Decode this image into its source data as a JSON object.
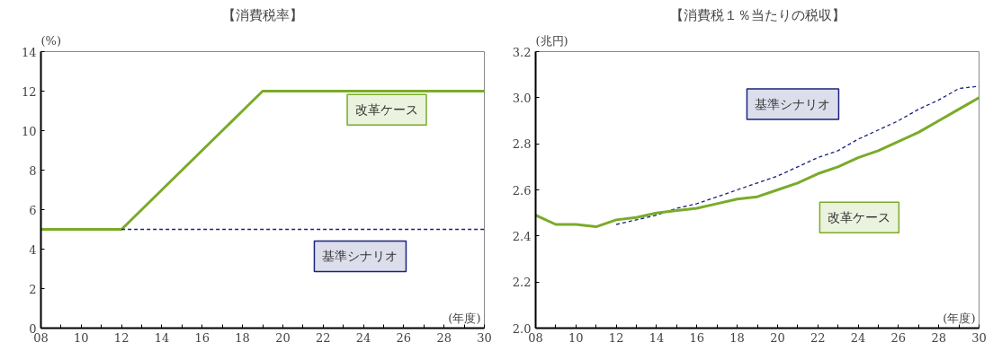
{
  "chart_data": [
    {
      "type": "line",
      "title": "【消費税率】",
      "ylabel": "(%)",
      "xlabel": "(年度)",
      "xlim": [
        8,
        30
      ],
      "ylim": [
        0,
        14
      ],
      "xticks": [
        {
          "value": 8,
          "label": "08"
        },
        {
          "value": 9,
          "label": null
        },
        {
          "value": 10,
          "label": "10"
        },
        {
          "value": 11,
          "label": null
        },
        {
          "value": 12,
          "label": "12"
        },
        {
          "value": 13,
          "label": null
        },
        {
          "value": 14,
          "label": "14"
        },
        {
          "value": 15,
          "label": null
        },
        {
          "value": 16,
          "label": "16"
        },
        {
          "value": 17,
          "label": null
        },
        {
          "value": 18,
          "label": "18"
        },
        {
          "value": 19,
          "label": null
        },
        {
          "value": 20,
          "label": "20"
        },
        {
          "value": 21,
          "label": null
        },
        {
          "value": 22,
          "label": "22"
        },
        {
          "value": 23,
          "label": null
        },
        {
          "value": 24,
          "label": "24"
        },
        {
          "value": 25,
          "label": null
        },
        {
          "value": 26,
          "label": "26"
        },
        {
          "value": 27,
          "label": null
        },
        {
          "value": 28,
          "label": "28"
        },
        {
          "value": 29,
          "label": null
        },
        {
          "value": 30,
          "label": "30"
        }
      ],
      "yticks": [
        0,
        2,
        4,
        6,
        8,
        10,
        12,
        14
      ],
      "grid": false,
      "series": [
        {
          "name": "改革ケース",
          "color": "#7aab28",
          "line_style": "solid",
          "x": [
            8,
            9,
            10,
            11,
            12,
            13,
            14,
            15,
            16,
            17,
            18,
            19,
            20,
            21,
            22,
            23,
            24,
            25,
            26,
            27,
            28,
            29,
            30
          ],
          "values": [
            5,
            5,
            5,
            5,
            5,
            6,
            7,
            8,
            9,
            10,
            11,
            12,
            12,
            12,
            12,
            12,
            12,
            12,
            12,
            12,
            12,
            12,
            12
          ]
        },
        {
          "name": "基準シナリオ",
          "color": "#1a237e",
          "line_style": "dashed",
          "x": [
            12,
            30
          ],
          "values": [
            5,
            5
          ]
        }
      ]
    },
    {
      "type": "line",
      "title": "【消費税１％当たりの税収】",
      "ylabel": "(兆円)",
      "xlabel": "(年度)",
      "xlim": [
        8,
        30
      ],
      "ylim": [
        2.0,
        3.2
      ],
      "xticks": [
        {
          "value": 8,
          "label": "08"
        },
        {
          "value": 9,
          "label": null
        },
        {
          "value": 10,
          "label": "10"
        },
        {
          "value": 11,
          "label": null
        },
        {
          "value": 12,
          "label": "12"
        },
        {
          "value": 13,
          "label": null
        },
        {
          "value": 14,
          "label": "14"
        },
        {
          "value": 15,
          "label": null
        },
        {
          "value": 16,
          "label": "16"
        },
        {
          "value": 17,
          "label": null
        },
        {
          "value": 18,
          "label": "18"
        },
        {
          "value": 19,
          "label": null
        },
        {
          "value": 20,
          "label": "20"
        },
        {
          "value": 21,
          "label": null
        },
        {
          "value": 22,
          "label": "22"
        },
        {
          "value": 23,
          "label": null
        },
        {
          "value": 24,
          "label": "24"
        },
        {
          "value": 25,
          "label": null
        },
        {
          "value": 26,
          "label": "26"
        },
        {
          "value": 27,
          "label": null
        },
        {
          "value": 28,
          "label": "28"
        },
        {
          "value": 29,
          "label": null
        },
        {
          "value": 30,
          "label": "30"
        }
      ],
      "yticks": [
        {
          "value": 2.0,
          "label": "2.0"
        },
        {
          "value": 2.2,
          "label": "2.2"
        },
        {
          "value": 2.4,
          "label": "2.4"
        },
        {
          "value": 2.6,
          "label": "2.6"
        },
        {
          "value": 2.8,
          "label": "2.8"
        },
        {
          "value": 3.0,
          "label": "3.0"
        },
        {
          "value": 3.2,
          "label": "3.2"
        }
      ],
      "grid": false,
      "series": [
        {
          "name": "基準シナリオ",
          "color": "#1a237e",
          "line_style": "dashed",
          "x": [
            12,
            13,
            14,
            15,
            16,
            17,
            18,
            19,
            20,
            21,
            22,
            23,
            24,
            25,
            26,
            27,
            28,
            29,
            30
          ],
          "values": [
            2.45,
            2.47,
            2.49,
            2.52,
            2.54,
            2.57,
            2.6,
            2.63,
            2.66,
            2.7,
            2.74,
            2.77,
            2.82,
            2.86,
            2.9,
            2.95,
            2.99,
            3.04,
            3.05
          ]
        },
        {
          "name": "改革ケース",
          "color": "#7aab28",
          "line_style": "solid",
          "x": [
            8,
            9,
            10,
            11,
            12,
            13,
            14,
            15,
            16,
            17,
            18,
            19,
            20,
            21,
            22,
            23,
            24,
            25,
            26,
            27,
            28,
            29,
            30
          ],
          "values": [
            2.49,
            2.45,
            2.45,
            2.44,
            2.47,
            2.48,
            2.5,
            2.51,
            2.52,
            2.54,
            2.56,
            2.57,
            2.6,
            2.63,
            2.67,
            2.7,
            2.74,
            2.77,
            2.81,
            2.85,
            2.9,
            2.95,
            3.0
          ]
        }
      ]
    }
  ]
}
